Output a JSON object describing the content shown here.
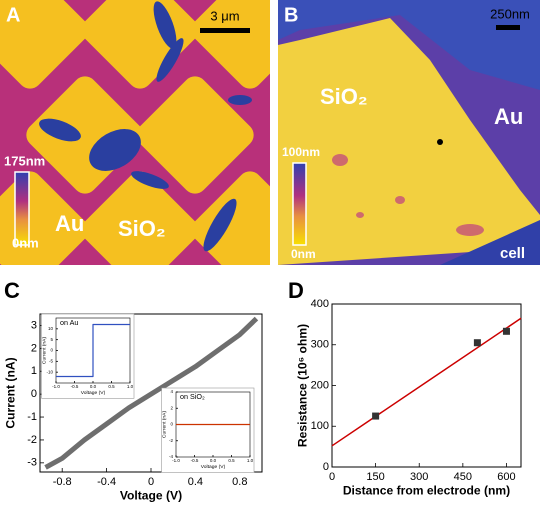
{
  "panels": [
    {
      "label": "A",
      "scale_bar": "3 μm",
      "colorbar_max": "175nm",
      "colorbar_min": "0nm",
      "region_1": "Au",
      "region_2": "SiO₂"
    },
    {
      "label": "B",
      "scale_bar": "250nm",
      "colorbar_max": "100nm",
      "colorbar_min": "0nm",
      "region_1": "SiO₂",
      "region_2": "Au",
      "region_3": "cell"
    },
    {
      "label": "C"
    },
    {
      "label": "D"
    }
  ],
  "chart_data": [
    {
      "type": "line",
      "x_label": "Voltage (V)",
      "y_label": "Current (nA)",
      "x": [
        -0.95,
        -0.8,
        -0.6,
        -0.4,
        -0.2,
        0,
        0.2,
        0.4,
        0.6,
        0.8,
        0.95
      ],
      "values": [
        -3.2,
        -2.8,
        -2.0,
        -1.3,
        -0.6,
        0.0,
        0.6,
        1.2,
        1.9,
        2.6,
        3.3
      ],
      "color": "#6e6e6e",
      "xlim": [
        -1,
        1
      ],
      "xticks": [
        -0.8,
        -0.4,
        0,
        0.4,
        0.8
      ],
      "ylim": [
        -3.4,
        3.5
      ],
      "yticks": [
        -3,
        -2,
        -1,
        0,
        1,
        2,
        3
      ]
    },
    {
      "type": "line",
      "annotation": "on Au",
      "x_label": "Voltage (V)",
      "y_label": "Current (nA)",
      "x": [
        -1,
        0,
        0,
        1
      ],
      "values": [
        -12,
        -12,
        12,
        12
      ],
      "color": "#3050c0",
      "xlim": [
        -1,
        1
      ],
      "xticks": [
        {
          "value": -1,
          "label": "-1.0"
        },
        -0.5,
        {
          "value": 0,
          "label": "0.0"
        },
        0.5,
        {
          "value": 1,
          "label": "1.0"
        }
      ],
      "ylim": [
        -15,
        15
      ],
      "yticks": [
        -10,
        -5,
        0,
        5,
        10
      ]
    },
    {
      "type": "line",
      "annotation": "on SiO₂",
      "x_label": "Voltage (V)",
      "y_label": "Current (nA)",
      "x": [
        -1,
        1
      ],
      "values": [
        0,
        0
      ],
      "color": "#cc3300",
      "xlim": [
        -1,
        1
      ],
      "xticks": [
        {
          "value": -1,
          "label": "-1.0"
        },
        -0.5,
        {
          "value": 0,
          "label": "0.0"
        },
        0.5,
        {
          "value": 1,
          "label": "1.0"
        }
      ],
      "ylim": [
        -4,
        4
      ],
      "yticks": [
        -4,
        -2,
        0,
        2,
        4
      ]
    },
    {
      "type": "scatter",
      "x_label": "Distance from electrode (nm)",
      "y_label": "Resistance (10⁶ ohm)",
      "x": [
        150,
        500,
        600
      ],
      "values": [
        125,
        305,
        333
      ],
      "color": "#333333",
      "fit_line": {
        "x": [
          0,
          650
        ],
        "values": [
          52,
          365
        ],
        "color": "#cc0000"
      },
      "xlim": [
        0,
        650
      ],
      "xticks": [
        0,
        150,
        300,
        450,
        600
      ],
      "ylim": [
        0,
        400
      ],
      "yticks": [
        0,
        100,
        200,
        300,
        400
      ]
    }
  ]
}
